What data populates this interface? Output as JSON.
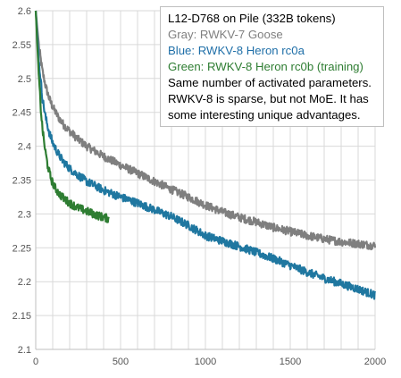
{
  "chart_data": {
    "type": "line",
    "title": "L12-D768 on Pile (332B tokens)",
    "xlabel": "",
    "ylabel": "",
    "xlim": [
      0,
      2000
    ],
    "ylim": [
      2.1,
      2.6
    ],
    "x_ticks": [
      "0",
      "500",
      "1000",
      "1500",
      "2000"
    ],
    "y_ticks": [
      "2.1",
      "2.15",
      "2.2",
      "2.25",
      "2.3",
      "2.35",
      "2.4",
      "2.45",
      "2.5",
      "2.55",
      "2.6"
    ],
    "grid": true,
    "legend_position": "top-right",
    "legend_lines": {
      "gray": "Gray: RWKV-7 Goose",
      "blue": "Blue: RWKV-8 Heron rc0a",
      "green": "Green: RWKV-8 Heron rc0b (training)"
    },
    "notes": [
      "Same number of activated parameters.",
      "RWKV-8 is sparse, but not MoE. It has",
      "some interesting unique advantages."
    ],
    "series": [
      {
        "color": "#7f7f7f",
        "x": [
          0,
          20,
          40,
          60,
          80,
          100,
          130,
          160,
          200,
          250,
          300,
          400,
          500,
          600,
          700,
          800,
          900,
          1000,
          1100,
          1200,
          1300,
          1400,
          1500,
          1600,
          1700,
          1800,
          1900,
          2000
        ],
        "y": [
          2.6,
          2.545,
          2.51,
          2.487,
          2.47,
          2.458,
          2.444,
          2.433,
          2.422,
          2.41,
          2.4,
          2.385,
          2.372,
          2.36,
          2.348,
          2.336,
          2.325,
          2.313,
          2.303,
          2.295,
          2.288,
          2.28,
          2.274,
          2.268,
          2.263,
          2.259,
          2.256,
          2.253
        ]
      },
      {
        "color": "#1f77a0",
        "x": [
          0,
          20,
          40,
          60,
          80,
          100,
          130,
          160,
          200,
          250,
          300,
          400,
          500,
          600,
          700,
          800,
          900,
          1000,
          1100,
          1200,
          1300,
          1400,
          1500,
          1600,
          1700,
          1800,
          1900,
          2000
        ],
        "y": [
          2.6,
          2.52,
          2.47,
          2.44,
          2.42,
          2.405,
          2.39,
          2.378,
          2.367,
          2.357,
          2.348,
          2.335,
          2.325,
          2.316,
          2.306,
          2.296,
          2.283,
          2.268,
          2.26,
          2.252,
          2.243,
          2.234,
          2.224,
          2.214,
          2.205,
          2.197,
          2.189,
          2.18
        ]
      },
      {
        "color": "#2e7d32",
        "x": [
          0,
          10,
          20,
          30,
          40,
          55,
          70,
          90,
          110,
          140,
          170,
          200,
          250,
          300,
          350,
          400,
          430
        ],
        "y": [
          2.6,
          2.545,
          2.495,
          2.455,
          2.425,
          2.395,
          2.372,
          2.352,
          2.34,
          2.329,
          2.322,
          2.316,
          2.309,
          2.304,
          2.299,
          2.295,
          2.293
        ]
      }
    ]
  }
}
